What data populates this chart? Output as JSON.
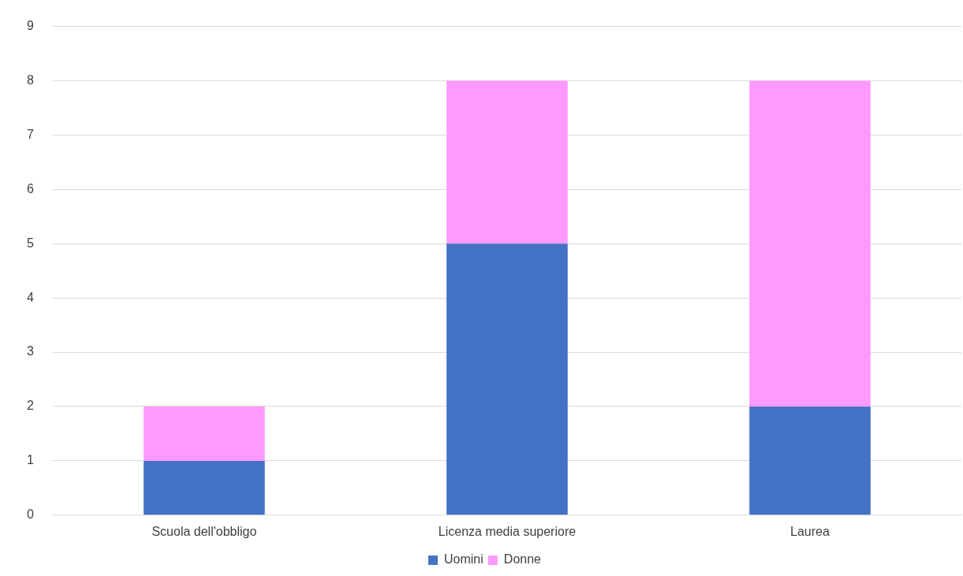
{
  "chart_data": {
    "type": "bar",
    "stacked": true,
    "categories": [
      "Scuola dell'obbligo",
      "Licenza media superiore",
      "Laurea"
    ],
    "series": [
      {
        "name": "Uomini",
        "color": "#4472c4",
        "values": [
          1,
          5,
          2
        ]
      },
      {
        "name": "Donne",
        "color": "#ff99ff",
        "values": [
          1,
          3,
          6
        ]
      }
    ],
    "ylim": [
      0,
      9
    ],
    "yticks": [
      0,
      1,
      2,
      3,
      4,
      5,
      6,
      7,
      8,
      9
    ],
    "grid": "y",
    "legend": "bottom"
  }
}
